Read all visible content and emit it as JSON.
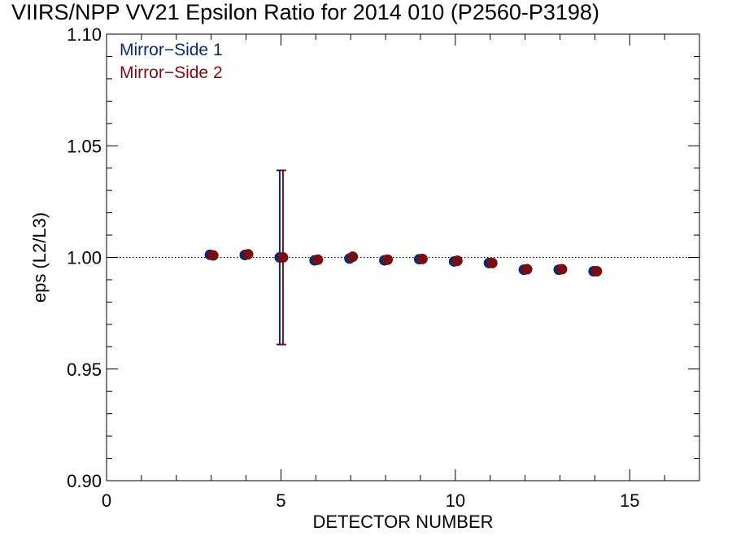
{
  "chart_data": {
    "type": "scatter",
    "title": "VIIRS/NPP VV21 Epsilon Ratio for 2014 010 (P2560-P3198)",
    "xlabel": "DETECTOR NUMBER",
    "ylabel": "eps (L2/L3)",
    "xlim": [
      0,
      17
    ],
    "ylim": [
      0.9,
      1.1
    ],
    "xticks": [
      0,
      5,
      10,
      15
    ],
    "yticks": [
      0.9,
      0.95,
      1.0,
      1.05,
      1.1
    ],
    "ytick_labels": [
      "0.90",
      "0.95",
      "1.00",
      "1.05",
      "1.10"
    ],
    "reference_line": 1.0,
    "grid": false,
    "legend_position": "top-left",
    "series": [
      {
        "name": "Mirror−Side 1",
        "color": "#0a2a6b",
        "x": [
          3,
          4,
          5,
          6,
          7,
          8,
          9,
          10,
          11,
          12,
          13,
          14
        ],
        "y": [
          1.0012,
          1.0011,
          1.0,
          0.9987,
          0.9995,
          0.9987,
          0.9992,
          0.9982,
          0.9975,
          0.9945,
          0.9945,
          0.9938
        ],
        "error_bar": {
          "x": 5,
          "low": 0.961,
          "high": 1.039
        }
      },
      {
        "name": "Mirror−Side 2",
        "color": "#7a0d12",
        "x": [
          3,
          4,
          5,
          6,
          7,
          8,
          9,
          10,
          11,
          12,
          13,
          14
        ],
        "y": [
          1.0009,
          1.0014,
          1.0,
          0.999,
          1.0003,
          0.999,
          0.9993,
          0.9985,
          0.9975,
          0.9947,
          0.9947,
          0.9938
        ],
        "error_bar": {
          "x": 5,
          "low": 0.961,
          "high": 1.039
        }
      }
    ]
  }
}
